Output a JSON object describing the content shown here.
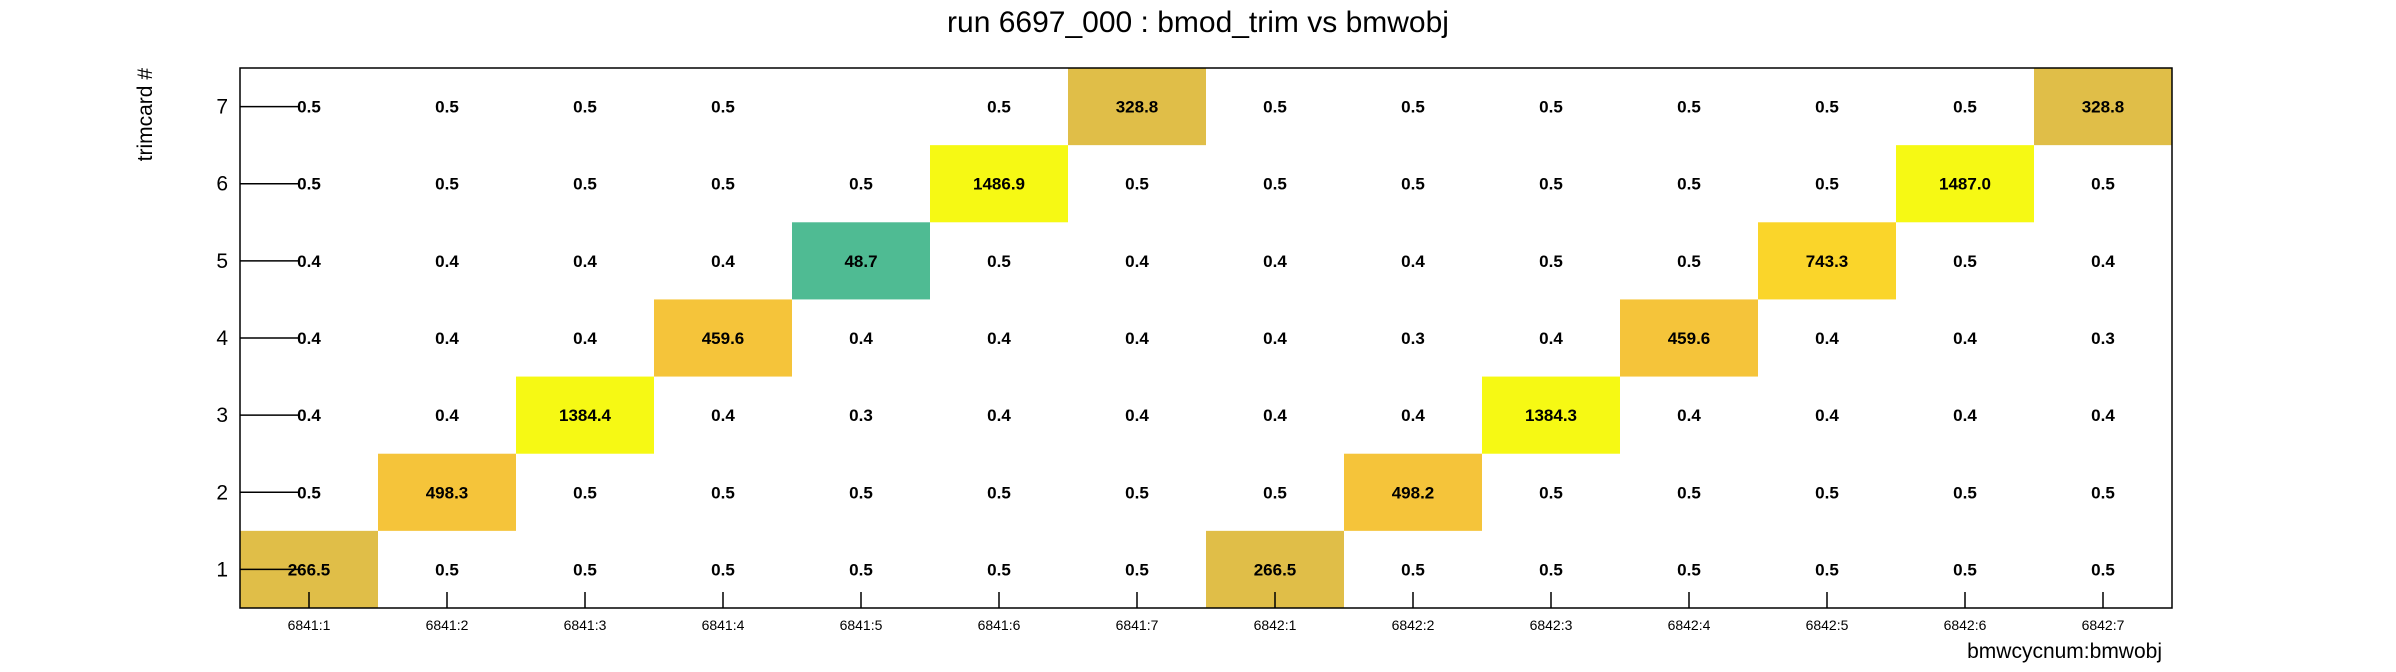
{
  "chart_data": {
    "type": "heatmap",
    "title": "run 6697_000 : bmod_trim vs bmwobj",
    "xlabel": "bmwcycnum:bmwobj",
    "ylabel": "trimcard #",
    "x_categories": [
      "6841:1",
      "6841:2",
      "6841:3",
      "6841:4",
      "6841:5",
      "6841:6",
      "6841:7",
      "6842:1",
      "6842:2",
      "6842:3",
      "6842:4",
      "6842:5",
      "6842:6",
      "6842:7"
    ],
    "y_categories": [
      "1",
      "2",
      "3",
      "4",
      "5",
      "6",
      "7"
    ],
    "values": [
      [
        "266.5",
        "0.5",
        "0.5",
        "0.5",
        "0.5",
        "0.5",
        "0.5",
        "266.5",
        "0.5",
        "0.5",
        "0.5",
        "0.5",
        "0.5",
        "0.5"
      ],
      [
        "0.5",
        "498.3",
        "0.5",
        "0.5",
        "0.5",
        "0.5",
        "0.5",
        "0.5",
        "498.2",
        "0.5",
        "0.5",
        "0.5",
        "0.5",
        "0.5"
      ],
      [
        "0.4",
        "0.4",
        "1384.4",
        "0.4",
        "0.3",
        "0.4",
        "0.4",
        "0.4",
        "0.4",
        "1384.3",
        "0.4",
        "0.4",
        "0.4",
        "0.4"
      ],
      [
        "0.4",
        "0.4",
        "0.4",
        "459.6",
        "0.4",
        "0.4",
        "0.4",
        "0.4",
        "0.3",
        "0.4",
        "459.6",
        "0.4",
        "0.4",
        "0.3"
      ],
      [
        "0.4",
        "0.4",
        "0.4",
        "0.4",
        "48.7",
        "0.5",
        "0.4",
        "0.4",
        "0.4",
        "0.5",
        "0.5",
        "743.3",
        "0.5",
        "0.4"
      ],
      [
        "0.5",
        "0.5",
        "0.5",
        "0.5",
        "0.5",
        "1486.9",
        "0.5",
        "0.5",
        "0.5",
        "0.5",
        "0.5",
        "0.5",
        "1487.0",
        "0.5"
      ],
      [
        "0.5",
        "0.5",
        "0.5",
        "0.5",
        "",
        "0.5",
        "328.8",
        "0.5",
        "0.5",
        "0.5",
        "0.5",
        "0.5",
        "0.5",
        "328.8"
      ]
    ],
    "color_max": 1487.0,
    "colors": {
      "low": "#4fbb93",
      "mid_low": "#e0be48",
      "mid": "#f5c43a",
      "mid_high": "#fad52a",
      "high": "#f6f914"
    },
    "grid": false,
    "legend": "none"
  }
}
